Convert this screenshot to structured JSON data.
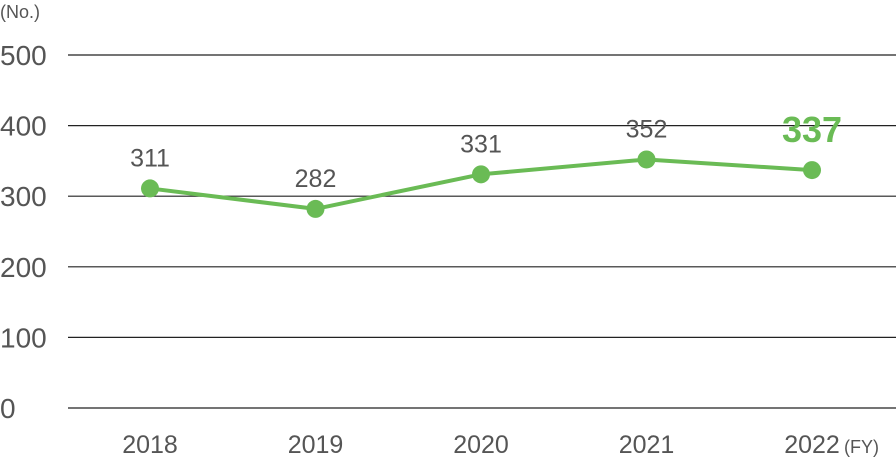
{
  "chart_data": {
    "type": "line",
    "ylabel": "(No.)",
    "x_unit": "(FY)",
    "categories": [
      "2018",
      "2019",
      "2020",
      "2021",
      "2022"
    ],
    "series": [
      {
        "values": [
          311,
          282,
          331,
          352,
          337
        ]
      }
    ],
    "data_labels": [
      "311",
      "282",
      "331",
      "352",
      "337"
    ],
    "highlight_index": 4,
    "ylim": [
      0,
      500
    ],
    "yticks": [
      "0",
      "100",
      "200",
      "300",
      "400",
      "500"
    ],
    "grid": true,
    "colors": {
      "line": "#6abb55",
      "highlight_label": "#6abb55",
      "grid": "#222222",
      "text": "#555555"
    }
  }
}
